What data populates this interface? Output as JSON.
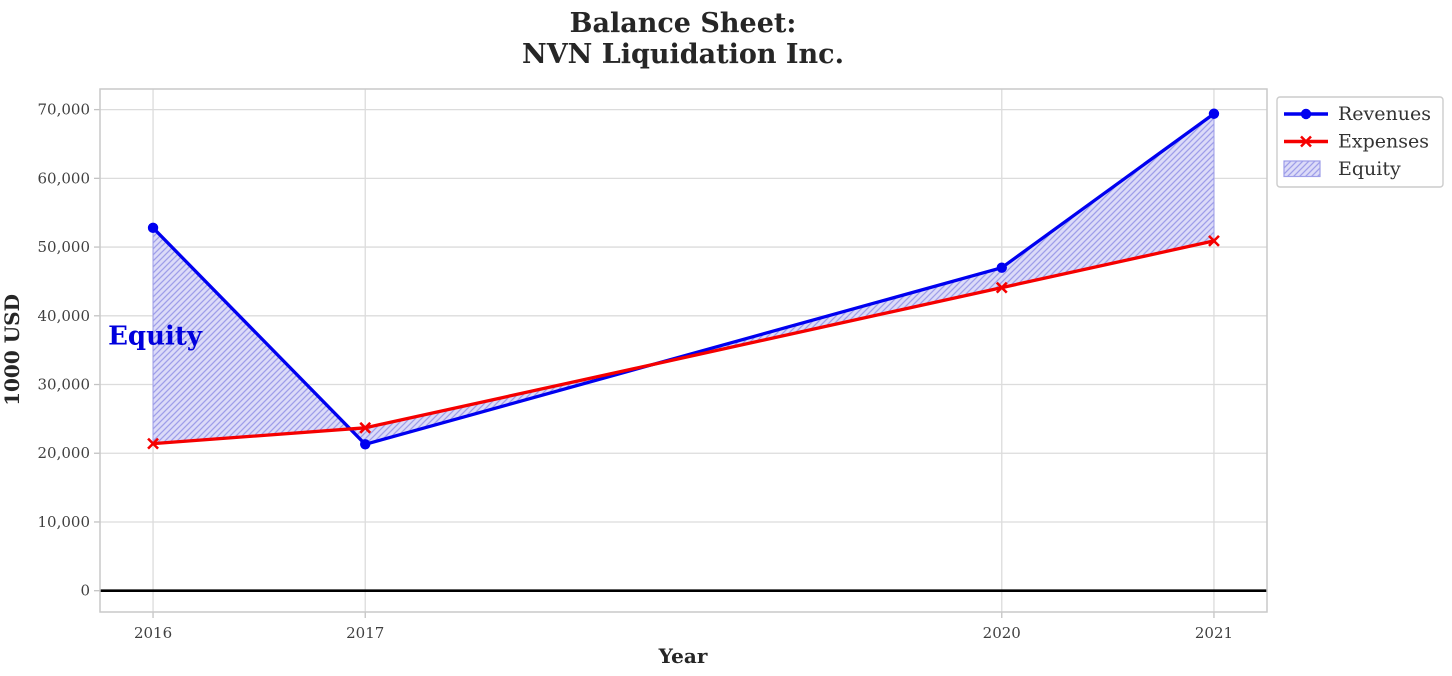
{
  "chart_data": {
    "type": "line",
    "title_lines": [
      "Balance Sheet:",
      "NVN Liquidation Inc."
    ],
    "xlabel": "Year",
    "ylabel": "1000 USD",
    "x": [
      2016,
      2017,
      2020,
      2021
    ],
    "series": [
      {
        "name": "Revenues",
        "values": [
          52800,
          21300,
          47000,
          69400
        ],
        "color": "#0000f0",
        "marker": "circle"
      },
      {
        "name": "Expenses",
        "values": [
          21400,
          23700,
          44100,
          50900
        ],
        "color": "#f50000",
        "marker": "x"
      }
    ],
    "fill_between": {
      "label": "Equity",
      "between": [
        "Revenues",
        "Expenses"
      ],
      "facecolor": "#dcdbf8",
      "hatch": "//",
      "hatch_color": "#9e9ee9"
    },
    "annotation": {
      "text": "Equity",
      "x": 2016,
      "y": 37000,
      "color": "#0000dd"
    },
    "xlim": [
      2015.75,
      2021.25
    ],
    "ylim": [
      -3100,
      73000
    ],
    "xticks": [
      2016,
      2017,
      2020,
      2021
    ],
    "xtick_labels": [
      "2016",
      "2017",
      "2020",
      "2021"
    ],
    "yticks": [
      0,
      10000,
      20000,
      30000,
      40000,
      50000,
      60000,
      70000
    ],
    "ytick_labels": [
      "0",
      "10,000",
      "20,000",
      "30,000",
      "40,000",
      "50,000",
      "60,000",
      "70,000"
    ],
    "grid": true,
    "zero_line_y": 0,
    "legend": {
      "position": "outside-top-right",
      "entries": [
        "Revenues",
        "Expenses",
        "Equity"
      ]
    }
  }
}
